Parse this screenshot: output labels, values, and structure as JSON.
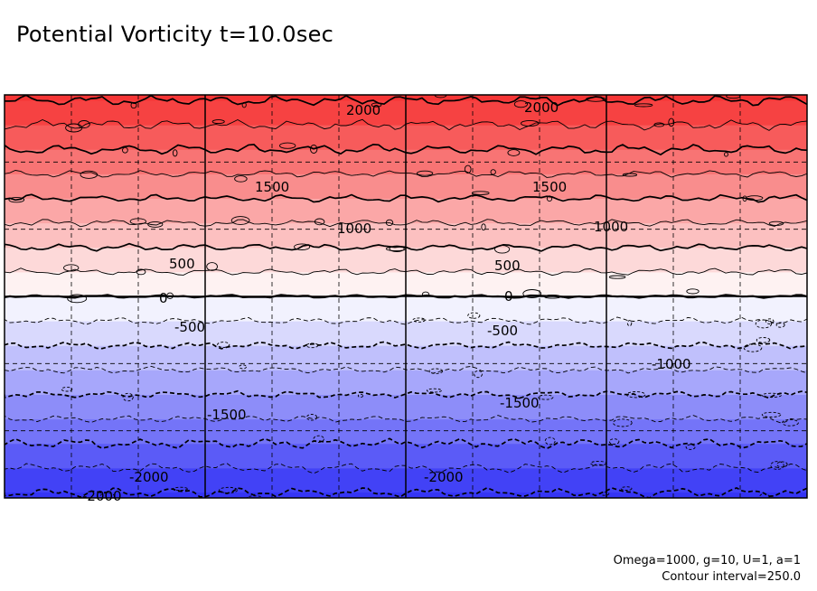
{
  "title": "Potential Vorticity t=10.0sec",
  "params_text": "Omega=1000, g=10, U=1, a=1",
  "interval_text": "Contour interval=250.0",
  "chart_data": {
    "type": "heatmap",
    "title": "Potential Vorticity t=10.0sec",
    "field": "potential vorticity",
    "contour_interval": 250.0,
    "levels": [
      -2000,
      -1750,
      -1500,
      -1250,
      -1000,
      -750,
      -500,
      -250,
      0,
      250,
      500,
      750,
      1000,
      1250,
      1500,
      1750,
      2000
    ],
    "colormap": {
      "negative": "#3535f5",
      "zero": "#ffffff",
      "positive": "#f53535"
    },
    "gridlines": true,
    "labeled_contours": [
      {
        "text": "2000",
        "value": 2000
      },
      {
        "text": "2000",
        "value": 2000
      },
      {
        "text": "1500",
        "value": 1500
      },
      {
        "text": "1500",
        "value": 1500
      },
      {
        "text": "1000",
        "value": 1000
      },
      {
        "text": "1000",
        "value": 1000
      },
      {
        "text": "500",
        "value": 500
      },
      {
        "text": "500",
        "value": 500
      },
      {
        "text": "0",
        "value": 0
      },
      {
        "text": "0",
        "value": 0
      },
      {
        "text": "-500",
        "value": -500
      },
      {
        "text": "-500",
        "value": -500
      },
      {
        "text": "-1000",
        "value": -1000
      },
      {
        "text": "-1500",
        "value": -1500
      },
      {
        "text": "-1500",
        "value": -1500
      },
      {
        "text": "-2000",
        "value": -2000
      },
      {
        "text": "-2000",
        "value": -2000
      },
      {
        "text": "-2000",
        "value": -2000
      }
    ],
    "parameters": {
      "Omega": 1000,
      "g": 10,
      "U": 1,
      "a": 1
    }
  }
}
